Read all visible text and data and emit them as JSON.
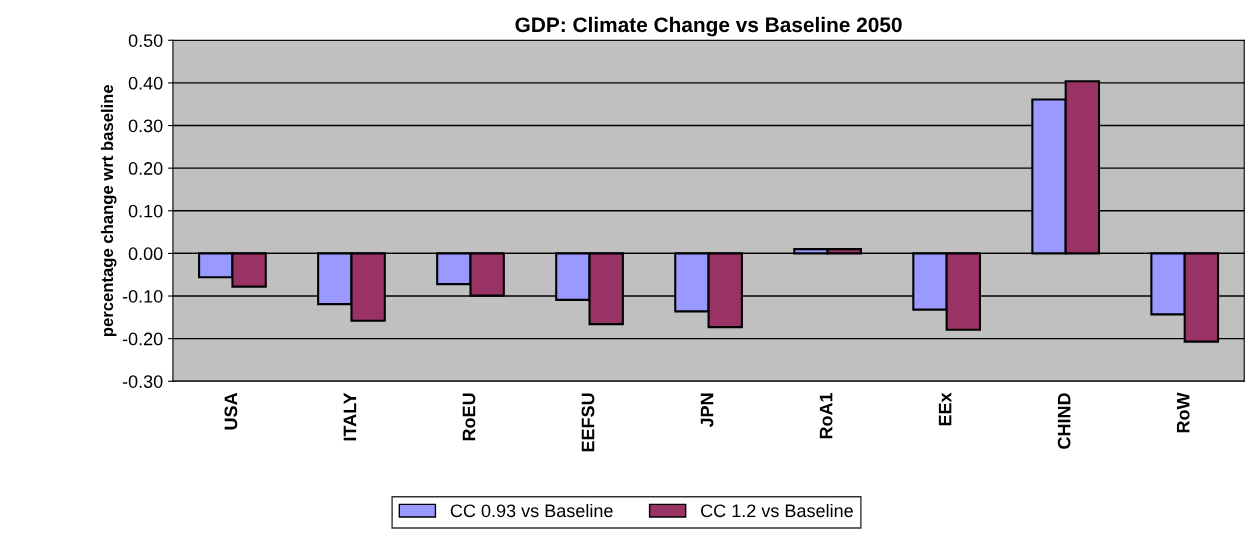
{
  "chart_data": {
    "type": "bar",
    "title": "GDP: Climate Change vs Baseline 2050",
    "ylabel": "percentage change wrt baseline",
    "categories": [
      "USA",
      "ITALY",
      "RoEU",
      "EEFSU",
      "JPN",
      "RoA1",
      "EEx",
      "CHIND",
      "RoW"
    ],
    "series": [
      {
        "name": "CC 0.93 vs Baseline",
        "color": "#9999ff",
        "values": [
          -0.056,
          -0.119,
          -0.072,
          -0.109,
          -0.136,
          0.01,
          -0.132,
          0.361,
          -0.143
        ]
      },
      {
        "name": "CC 1.2 vs Baseline",
        "color": "#993366",
        "values": [
          -0.078,
          -0.158,
          -0.099,
          -0.166,
          -0.173,
          0.01,
          -0.179,
          0.404,
          -0.207
        ]
      }
    ],
    "ylim": [
      -0.3,
      0.5
    ],
    "yticks": [
      {
        "value": -0.3,
        "label": "-0.30"
      },
      {
        "value": -0.2,
        "label": "-0.20"
      },
      {
        "value": -0.1,
        "label": "-0.10"
      },
      {
        "value": 0,
        "label": "0.00"
      },
      {
        "value": 0.1,
        "label": "0.10"
      },
      {
        "value": 0.2,
        "label": "0.20"
      },
      {
        "value": 0.3,
        "label": "0.30"
      },
      {
        "value": 0.4,
        "label": "0.40"
      },
      {
        "value": 0.5,
        "label": "0.50"
      }
    ],
    "grid": "y",
    "legend": "bottom"
  }
}
